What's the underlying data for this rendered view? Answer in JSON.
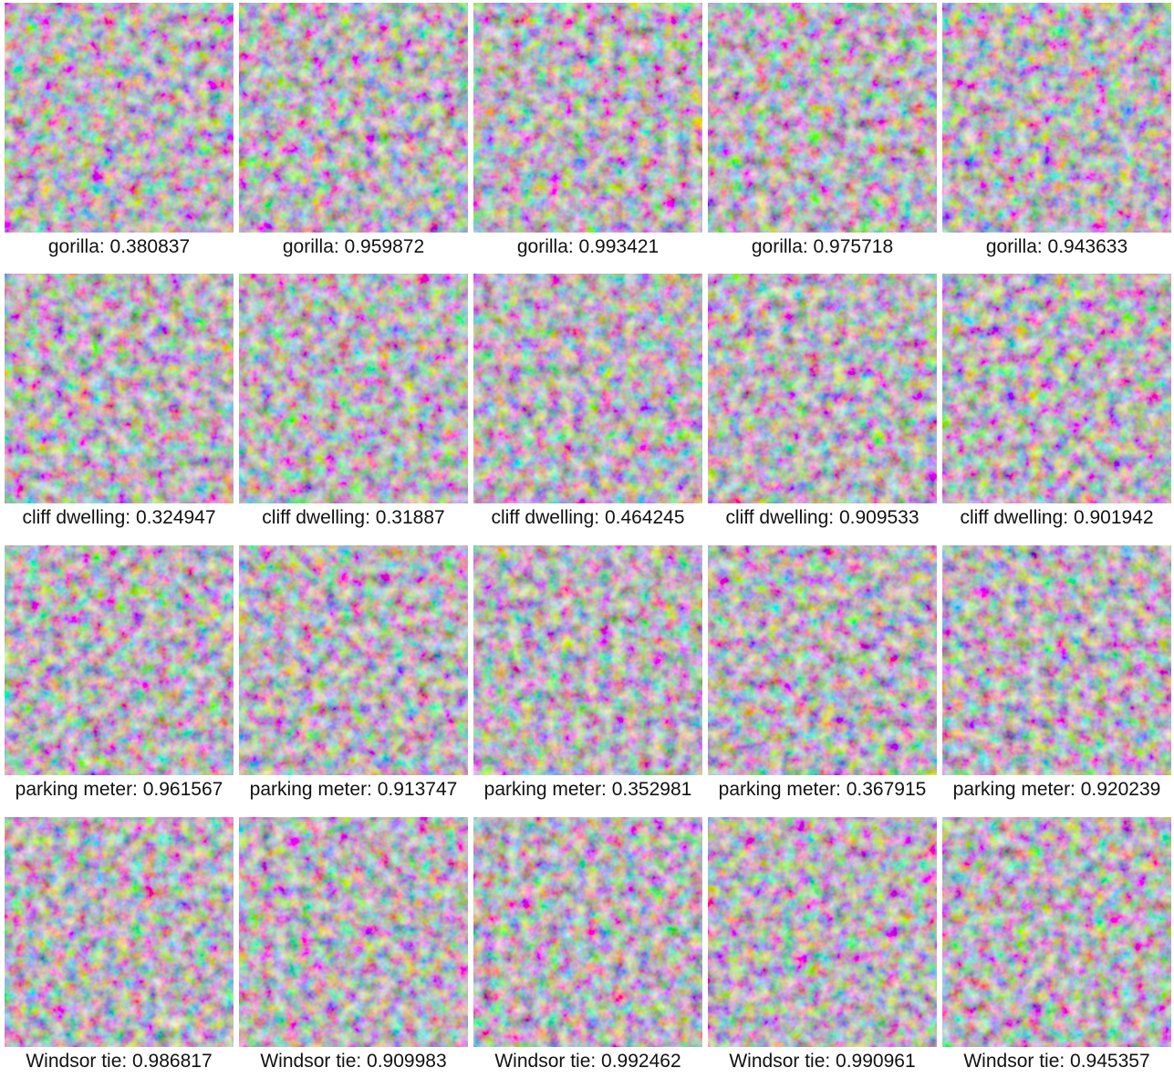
{
  "rows": [
    {
      "cells": [
        {
          "caption": "gorilla: 0.380837"
        },
        {
          "caption": "gorilla: 0.959872"
        },
        {
          "caption": "gorilla: 0.993421"
        },
        {
          "caption": "gorilla: 0.975718"
        },
        {
          "caption": "gorilla: 0.943633"
        }
      ]
    },
    {
      "cells": [
        {
          "caption": "cliff dwelling: 0.324947"
        },
        {
          "caption": "cliff dwelling: 0.31887"
        },
        {
          "caption": "cliff dwelling: 0.464245"
        },
        {
          "caption": "cliff dwelling: 0.909533"
        },
        {
          "caption": "cliff dwelling: 0.901942"
        }
      ]
    },
    {
      "cells": [
        {
          "caption": "parking meter: 0.961567"
        },
        {
          "caption": "parking meter: 0.913747"
        },
        {
          "caption": "parking meter: 0.352981"
        },
        {
          "caption": "parking meter: 0.367915"
        },
        {
          "caption": "parking meter: 0.920239"
        }
      ]
    },
    {
      "cells": [
        {
          "caption": "Windsor tie: 0.986817"
        },
        {
          "caption": "Windsor tie: 0.909983"
        },
        {
          "caption": "Windsor tie: 0.992462"
        },
        {
          "caption": "Windsor tie: 0.990961"
        },
        {
          "caption": "Windsor tie: 0.945357"
        }
      ]
    }
  ]
}
